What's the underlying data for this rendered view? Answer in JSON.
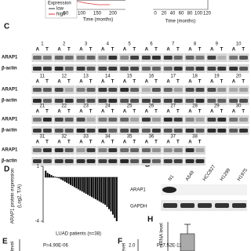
{
  "survival": {
    "legend_title": "Expression",
    "legend": [
      "low",
      "high"
    ],
    "x_label": "Time (months)",
    "left_xticks": [
      "50",
      "100",
      "150",
      "200"
    ],
    "right_xticks": [
      "0",
      "20",
      "40",
      "60",
      "80",
      "100",
      "120"
    ]
  },
  "panels": [
    "C",
    "D",
    "E",
    "F",
    "G",
    "H"
  ],
  "blot": {
    "lane_labels": [
      "A",
      "T"
    ],
    "rows": [
      "ARAP1",
      "β-actin"
    ],
    "groups": [
      [
        "1",
        "2",
        "3",
        "4",
        "5",
        "6",
        "7",
        "8",
        "9",
        "10"
      ],
      [
        "11",
        "12",
        "13",
        "14",
        "15",
        "16",
        "17",
        "18",
        "19",
        "20"
      ],
      [
        "21",
        "22",
        "23",
        "24",
        "25",
        "26",
        "27",
        "28",
        "29",
        "30"
      ],
      [
        "31",
        "32",
        "33",
        "34",
        "35",
        "36",
        "37",
        "38"
      ]
    ]
  },
  "chart_data": {
    "type": "bar",
    "y_label": "ARAP1 protein expression",
    "y_label_2": "(Log2, T/A)",
    "x_label": "LUAD patients (n=38)",
    "values": [
      0.6,
      0.4,
      0.3,
      0.2,
      0.1,
      0.05,
      -0.05,
      -0.1,
      -0.2,
      -0.3,
      -0.4,
      -0.5,
      -0.6,
      -0.7,
      -0.8,
      -0.9,
      -1.0,
      -1.1,
      -1.2,
      -1.3,
      -1.4,
      -1.5,
      -1.6,
      -1.7,
      -1.8,
      -1.9,
      -2.0,
      -2.1,
      -2.2,
      -2.3,
      -2.4,
      -2.5,
      -2.7,
      -2.9,
      -3.1,
      -3.4,
      -3.7,
      -4.0
    ],
    "color": "#000000",
    "ylim": [
      -4,
      1
    ],
    "yticks": [
      1,
      -4
    ]
  },
  "cell_blot": {
    "lanes": [
      "N1",
      "A549",
      "HCC827",
      "H1299",
      "H1975"
    ],
    "rows": [
      "ARAP1",
      "GAPDH"
    ]
  },
  "mrna": {
    "y_label": "mRNA level"
  },
  "e_panel": {
    "y_label": "level",
    "p": "P=4.90E-06"
  },
  "f_panel": {
    "y_label": "level",
    "tick": "2.0",
    "p": "P=7.52E-11"
  }
}
